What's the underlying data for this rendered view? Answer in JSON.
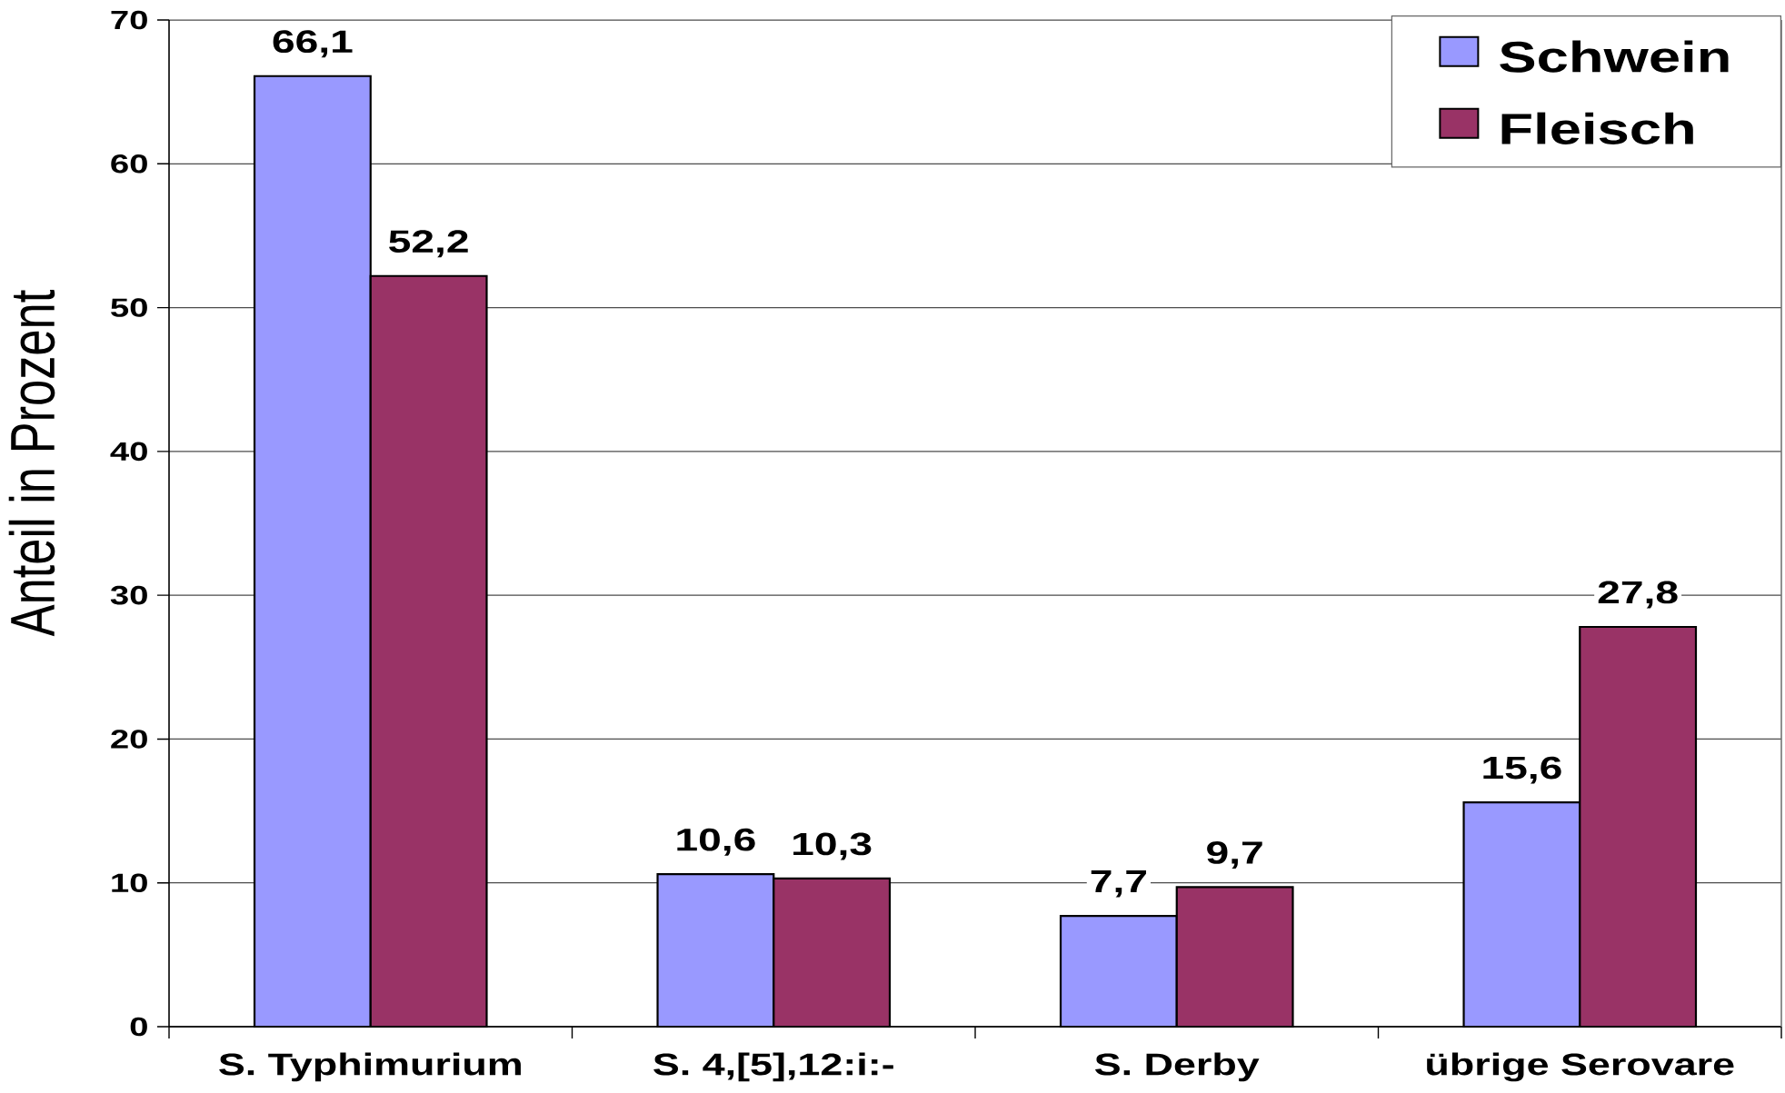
{
  "chart_data": {
    "type": "bar",
    "ylabel": "Anteil in Prozent",
    "categories": [
      "S. Typhimurium",
      "S. 4,[5],12:i:-",
      "S. Derby",
      "übrige Serovare"
    ],
    "series": [
      {
        "name": "Schwein",
        "color": "#9999ff",
        "values": [
          66.1,
          10.6,
          7.7,
          15.6
        ],
        "value_labels": [
          "66,1",
          "10,6",
          "7,7",
          "15,6"
        ]
      },
      {
        "name": "Fleisch",
        "color": "#993366",
        "values": [
          52.2,
          10.3,
          9.7,
          27.8
        ],
        "value_labels": [
          "52,2",
          "10,3",
          "9,7",
          "27,8"
        ]
      }
    ],
    "ylim": [
      0,
      70
    ],
    "yticks": [
      0,
      10,
      20,
      30,
      40,
      50,
      60,
      70
    ],
    "grid": "y",
    "legend": "top right"
  }
}
